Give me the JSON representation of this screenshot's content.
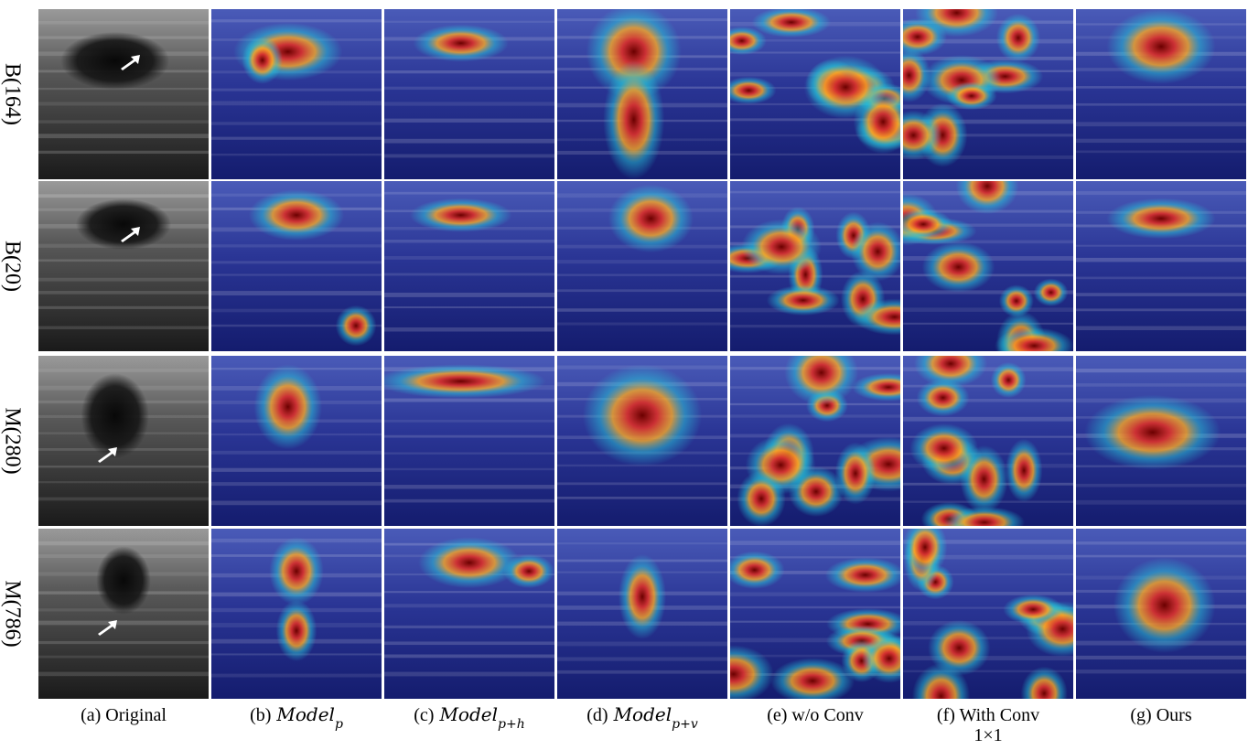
{
  "rows": [
    "B(164)",
    "B(20)",
    "M(280)",
    "M(786)"
  ],
  "columns": [
    {
      "prefix": "(a) Original"
    },
    {
      "prefix": "(b)",
      "name": "Model",
      "sub": "p"
    },
    {
      "prefix": "(c)",
      "name": "Model",
      "sub": "p+h"
    },
    {
      "prefix": "(d)",
      "name": "Model",
      "sub": "p+v"
    },
    {
      "prefix": "(e) w/o Conv"
    },
    {
      "prefix": "(f) With Conv",
      "line2": "1×1"
    },
    {
      "prefix": "(g) Ours"
    }
  ]
}
